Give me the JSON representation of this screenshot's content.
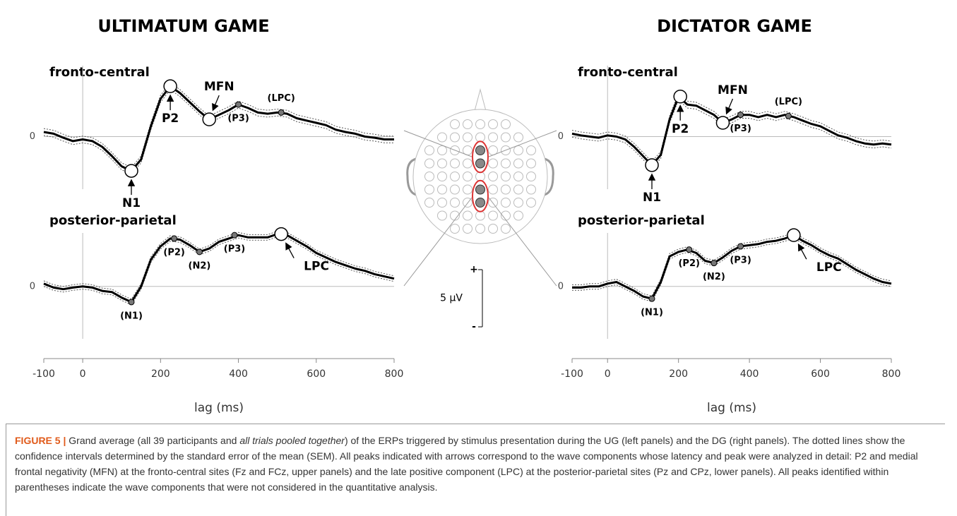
{
  "panels": [
    {
      "title": "ULTIMATUM GAME"
    },
    {
      "title": "DICTATOR GAME"
    }
  ],
  "chart_data": [
    {
      "type": "line",
      "subtitle": "fronto-central",
      "x": [
        -100,
        -75,
        -50,
        -25,
        0,
        25,
        50,
        75,
        100,
        125,
        150,
        175,
        200,
        225,
        250,
        275,
        300,
        325,
        350,
        375,
        400,
        425,
        450,
        475,
        500,
        525,
        550,
        575,
        600,
        625,
        650,
        675,
        700,
        725,
        750,
        775,
        800
      ],
      "series": [
        {
          "color": "#000000",
          "values": [
            0.4,
            0.25,
            -0.1,
            -0.4,
            -0.25,
            -0.4,
            -0.9,
            -1.7,
            -2.6,
            -3.0,
            -2.0,
            0.9,
            3.3,
            4.4,
            3.8,
            3.0,
            2.2,
            1.5,
            1.9,
            2.3,
            2.8,
            2.5,
            2.1,
            2.0,
            2.1,
            2.0,
            1.6,
            1.4,
            1.2,
            1.0,
            0.6,
            0.4,
            0.25,
            0,
            -0.1,
            -0.25,
            -0.25
          ]
        }
      ],
      "sem": 0.3,
      "xlim": [
        -100,
        800
      ],
      "ylim": [
        -4.6,
        6.2
      ],
      "yticks": [
        0
      ],
      "annotations": [
        {
          "label": "N1",
          "x": 125,
          "y": -3.0,
          "style": "major",
          "placement": "below"
        },
        {
          "label": "P2",
          "x": 225,
          "y": 4.4,
          "style": "major",
          "placement": "below"
        },
        {
          "label": "MFN",
          "x": 325,
          "y": 1.5,
          "style": "major",
          "placement": "above"
        },
        {
          "label": "(P3)",
          "x": 400,
          "y": 2.8,
          "style": "minor",
          "placement": "below"
        },
        {
          "label": "(LPC)",
          "x": 510,
          "y": 2.1,
          "style": "minor",
          "placement": "above"
        }
      ]
    },
    {
      "type": "line",
      "subtitle": "posterior-parietal",
      "x": [
        -100,
        -75,
        -50,
        -25,
        0,
        25,
        50,
        75,
        100,
        125,
        150,
        175,
        200,
        225,
        250,
        275,
        300,
        325,
        350,
        375,
        400,
        425,
        450,
        475,
        500,
        525,
        550,
        575,
        600,
        625,
        650,
        675,
        700,
        725,
        750,
        775,
        800
      ],
      "series": [
        {
          "color": "#000000",
          "values": [
            0.25,
            -0.1,
            -0.25,
            -0.1,
            0,
            -0.1,
            -0.4,
            -0.5,
            -1.0,
            -1.4,
            0,
            2.4,
            3.6,
            4.3,
            4.2,
            3.7,
            3.1,
            3.4,
            4.0,
            4.3,
            4.6,
            4.4,
            4.4,
            4.4,
            4.7,
            4.6,
            4.1,
            3.6,
            3.0,
            2.6,
            2.2,
            1.9,
            1.6,
            1.4,
            1.1,
            0.9,
            0.7
          ]
        }
      ],
      "sem": 0.25,
      "xlim": [
        -100,
        800
      ],
      "ylim": [
        -4.7,
        4.8
      ],
      "yticks": [
        0
      ],
      "xticks": [
        -100,
        0,
        200,
        400,
        600,
        800
      ],
      "xlabel": "lag (ms)",
      "annotations": [
        {
          "label": "(N1)",
          "x": 125,
          "y": -1.4,
          "style": "minor",
          "placement": "below"
        },
        {
          "label": "(P2)",
          "x": 235,
          "y": 4.3,
          "style": "minor",
          "placement": "below"
        },
        {
          "label": "(N2)",
          "x": 300,
          "y": 3.1,
          "style": "minor",
          "placement": "below"
        },
        {
          "label": "(P3)",
          "x": 390,
          "y": 4.6,
          "style": "minor",
          "placement": "below"
        },
        {
          "label": "LPC",
          "x": 510,
          "y": 4.7,
          "style": "major",
          "placement": "below"
        }
      ]
    },
    {
      "type": "line",
      "subtitle": "fronto-central",
      "x": [
        -100,
        -75,
        -50,
        -25,
        0,
        25,
        50,
        75,
        100,
        125,
        150,
        175,
        200,
        225,
        250,
        275,
        300,
        325,
        350,
        375,
        400,
        425,
        450,
        475,
        500,
        525,
        550,
        575,
        600,
        625,
        650,
        675,
        700,
        725,
        750,
        775,
        800
      ],
      "series": [
        {
          "color": "#000000",
          "values": [
            0.25,
            0.1,
            0,
            -0.1,
            0.1,
            0,
            -0.25,
            -0.9,
            -1.7,
            -2.5,
            -1.6,
            1.5,
            3.5,
            2.8,
            2.7,
            2.3,
            1.9,
            1.2,
            1.5,
            1.9,
            1.9,
            1.7,
            1.9,
            1.7,
            1.9,
            1.7,
            1.4,
            1.1,
            0.9,
            0.5,
            0.1,
            -0.1,
            -0.4,
            -0.6,
            -0.7,
            -0.6,
            -0.7
          ]
        }
      ],
      "sem": 0.3,
      "xlim": [
        -100,
        800
      ],
      "ylim": [
        -4.6,
        6.2
      ],
      "yticks": [
        0
      ],
      "annotations": [
        {
          "label": "N1",
          "x": 125,
          "y": -2.5,
          "style": "major",
          "placement": "below"
        },
        {
          "label": "P2",
          "x": 205,
          "y": 3.5,
          "style": "major",
          "placement": "below"
        },
        {
          "label": "MFN",
          "x": 325,
          "y": 1.2,
          "style": "major",
          "placement": "above"
        },
        {
          "label": "(P3)",
          "x": 375,
          "y": 1.9,
          "style": "minor",
          "placement": "below"
        },
        {
          "label": "(LPC)",
          "x": 510,
          "y": 1.8,
          "style": "minor",
          "placement": "above"
        }
      ]
    },
    {
      "type": "line",
      "subtitle": "posterior-parietal",
      "x": [
        -100,
        -75,
        -50,
        -25,
        0,
        25,
        50,
        75,
        100,
        125,
        150,
        175,
        200,
        225,
        250,
        275,
        300,
        325,
        350,
        375,
        400,
        425,
        450,
        475,
        500,
        525,
        550,
        575,
        600,
        625,
        650,
        675,
        700,
        725,
        750,
        775,
        800
      ],
      "series": [
        {
          "color": "#000000",
          "values": [
            -0.1,
            -0.1,
            0,
            0,
            0.25,
            0.4,
            0,
            -0.4,
            -0.9,
            -1.1,
            0.4,
            2.7,
            3.1,
            3.3,
            3.0,
            2.3,
            2.1,
            2.6,
            3.2,
            3.6,
            3.7,
            3.8,
            4.0,
            4.1,
            4.3,
            4.6,
            4.1,
            3.7,
            3.2,
            2.8,
            2.5,
            2.0,
            1.5,
            1.1,
            0.7,
            0.4,
            0.25
          ]
        }
      ],
      "sem": 0.25,
      "xlim": [
        -100,
        800
      ],
      "ylim": [
        -4.7,
        4.8
      ],
      "yticks": [
        0
      ],
      "xticks": [
        -100,
        0,
        200,
        400,
        600,
        800
      ],
      "xlabel": "lag (ms)",
      "annotations": [
        {
          "label": "(N1)",
          "x": 125,
          "y": -1.1,
          "style": "minor",
          "placement": "below"
        },
        {
          "label": "(P2)",
          "x": 230,
          "y": 3.3,
          "style": "minor",
          "placement": "below"
        },
        {
          "label": "(N2)",
          "x": 300,
          "y": 2.1,
          "style": "minor",
          "placement": "below"
        },
        {
          "label": "(P3)",
          "x": 375,
          "y": 3.6,
          "style": "minor",
          "placement": "below"
        },
        {
          "label": "LPC",
          "x": 525,
          "y": 4.6,
          "style": "major",
          "placement": "below"
        }
      ]
    }
  ],
  "scale_bar": {
    "value": 5,
    "label": "5 µV",
    "plus": "+",
    "minus": "-"
  },
  "caption": {
    "label": "FIGURE 5 |",
    "text": [
      "Grand average (all 39 participants and ",
      "all trials pooled together",
      ") of the ERPs triggered by stimulus presentation during the UG (left panels) and the DG (right panels). The dotted lines show the confidence intervals determined by the standard error of the mean (SEM). All peaks indicated with arrows correspond to the wave components whose latency and peak were analyzed in detail: P2 and medial frontal negativity (MFN) at the fronto-central sites (Fz and FCz, upper panels) and the late positive component (LPC) at the posterior-parietal sites (Pz and CPz, lower panels). All peaks identified within parentheses indicate the wave components that were not considered in the quantitative analysis."
    ]
  }
}
